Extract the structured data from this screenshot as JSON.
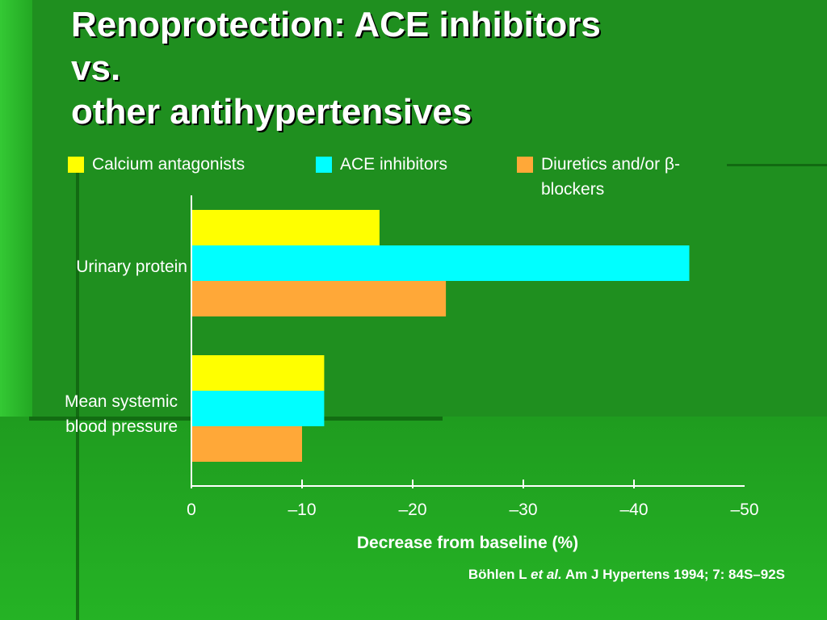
{
  "slide": {
    "title_lines": [
      "Renoprotection: ACE inhibitors",
      "vs.",
      "other antihypertensives"
    ],
    "citation": {
      "authors_pre": "Böhlen L ",
      "authors_italic": "et al.",
      "reference": " Am J Hypertens 1994; 7: 84S–92S"
    }
  },
  "colors": {
    "background": "#1f8f1f",
    "calcium": "#ffff00",
    "ace": "#00ffff",
    "diuretics": "#ffa838",
    "text": "#ffffff"
  },
  "chart_data": {
    "type": "bar",
    "orientation": "horizontal",
    "categories": [
      "Urinary protein",
      "Mean systemic blood pressure"
    ],
    "series": [
      {
        "name": "Calcium antagonists",
        "values": [
          -17,
          -12
        ],
        "color": "#ffff00"
      },
      {
        "name": "ACE inhibitors",
        "values": [
          -45,
          -12
        ],
        "color": "#00ffff"
      },
      {
        "name": "Diuretics and/or β-blockers",
        "values": [
          -23,
          -10
        ],
        "color": "#ffa838"
      }
    ],
    "xlabel": "Decrease from baseline (%)",
    "xticks": [
      "0",
      "–10",
      "–20",
      "–30",
      "–40",
      "–50"
    ],
    "xlim": [
      0,
      -50
    ],
    "legend_position": "top"
  }
}
